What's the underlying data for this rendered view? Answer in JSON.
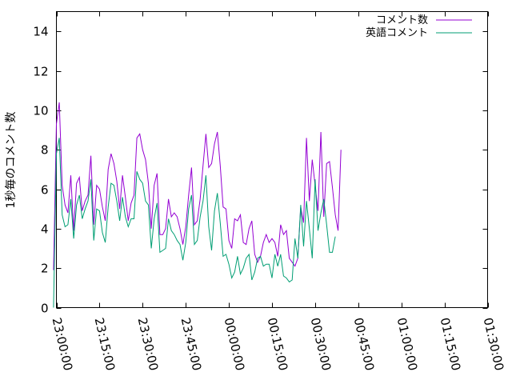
{
  "chart_data": {
    "type": "line",
    "ylabel": "1秒毎のコメント数",
    "xlabel": "",
    "title": "",
    "ylim": [
      0,
      15
    ],
    "yticks": [
      0,
      2,
      4,
      6,
      8,
      10,
      12,
      14
    ],
    "xlim": [
      "23:00:00",
      "01:30:00"
    ],
    "xtick_labels": [
      "23:00:00",
      "23:15:00",
      "23:30:00",
      "23:45:00",
      "00:00:00",
      "00:15:00",
      "00:30:00",
      "00:45:00",
      "01:00:00",
      "01:15:00",
      "01:30:00"
    ],
    "grid": false,
    "legend_position": "top-right",
    "x_step_seconds": 60,
    "x_start": "22:59:00",
    "series": [
      {
        "name": "コメント数",
        "color": "#9400d3",
        "values": [
          1.9,
          9.3,
          10.4,
          6.2,
          5.2,
          4.8,
          6.7,
          3.9,
          6.3,
          6.6,
          4.9,
          5.4,
          5.7,
          7.7,
          4.2,
          6.2,
          6.0,
          5.1,
          4.4,
          7.0,
          7.8,
          7.3,
          6.4,
          5.0,
          6.7,
          5.6,
          4.4,
          5.3,
          5.7,
          8.6,
          8.8,
          8.0,
          7.5,
          6.3,
          4.0,
          6.2,
          6.8,
          3.7,
          3.7,
          4.0,
          5.5,
          4.6,
          4.8,
          4.6,
          4.0,
          3.2,
          4.1,
          5.7,
          7.1,
          4.2,
          4.4,
          5.5,
          7.2,
          8.8,
          7.1,
          7.3,
          8.3,
          8.9,
          7.2,
          5.1,
          5.0,
          3.4,
          3.0,
          4.5,
          4.4,
          4.7,
          3.3,
          3.2,
          4.0,
          4.4,
          2.7,
          2.3,
          2.6,
          3.3,
          3.7,
          3.3,
          3.5,
          3.3,
          2.6,
          4.2,
          3.7,
          3.9,
          2.5,
          2.3,
          2.1,
          2.5,
          5.1,
          4.3,
          8.6,
          5.4,
          7.5,
          6.2,
          4.9,
          8.9,
          4.6,
          7.3,
          7.4,
          6.1,
          4.7,
          3.9,
          8.0
        ]
      },
      {
        "name": "英語コメント",
        "color": "#009e73",
        "values": [
          0.0,
          7.8,
          8.6,
          4.7,
          4.1,
          4.2,
          5.5,
          3.5,
          5.2,
          5.7,
          4.5,
          5.0,
          5.4,
          6.5,
          3.4,
          5.0,
          4.9,
          3.8,
          3.3,
          5.1,
          6.3,
          6.2,
          5.4,
          4.4,
          5.6,
          4.6,
          4.1,
          4.5,
          4.5,
          6.9,
          6.5,
          6.3,
          5.4,
          5.2,
          3.0,
          4.5,
          5.3,
          2.8,
          2.9,
          3.0,
          4.5,
          3.9,
          3.7,
          3.4,
          3.2,
          2.4,
          3.3,
          5.0,
          5.7,
          3.2,
          3.4,
          4.6,
          5.4,
          6.7,
          4.1,
          2.9,
          4.9,
          5.8,
          4.3,
          2.6,
          2.7,
          2.2,
          1.5,
          1.8,
          2.6,
          1.7,
          2.0,
          2.5,
          2.7,
          1.4,
          1.8,
          2.5,
          2.6,
          2.1,
          2.2,
          2.2,
          1.5,
          2.7,
          2.1,
          2.7,
          1.6,
          1.5,
          1.3,
          1.4,
          3.5,
          2.5,
          5.2,
          3.1,
          5.4,
          4.0,
          2.5,
          6.5,
          3.9,
          4.8,
          5.5,
          4.2,
          2.8,
          2.8,
          3.6
        ]
      }
    ]
  }
}
